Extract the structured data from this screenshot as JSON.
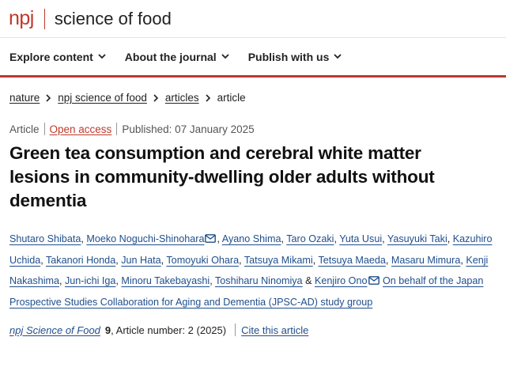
{
  "header": {
    "logo_npj": "npj",
    "logo_title": "science of food"
  },
  "nav": {
    "items": [
      {
        "label": "Explore content",
        "icon": "chevron-down-icon"
      },
      {
        "label": "About the journal",
        "icon": "chevron-down-icon"
      },
      {
        "label": "Publish with us",
        "icon": "chevron-down-icon"
      }
    ]
  },
  "breadcrumb": {
    "items": [
      "nature",
      "npj science of food",
      "articles"
    ],
    "current": "article"
  },
  "meta": {
    "type": "Article",
    "access": "Open access",
    "published": "Published: 07 January 2025"
  },
  "title": "Green tea consumption and cerebral white matter lesions in community-dwelling older adults without dementia",
  "authors": {
    "list": [
      "Shutaro Shibata",
      "Moeko Noguchi-Shinohara",
      "Ayano Shima",
      "Taro Ozaki",
      "Yuta Usui",
      "Yasuyuki Taki",
      "Kazuhiro Uchida",
      "Takanori Honda",
      "Jun Hata",
      "Tomoyuki Ohara",
      "Tatsuya Mikami",
      "Tetsuya Maeda",
      "Masaru Mimura",
      "Kenji Nakashima",
      "Jun-ichi Iga",
      "Minoru Takebayashi",
      "Toshiharu Ninomiya",
      "Kenjiro Ono"
    ],
    "ampersand": "&",
    "group": "On behalf of the Japan Prospective Studies Collaboration for Aging and Dementia (JPSC-AD) study group"
  },
  "citation": {
    "journal": "npj Science of Food",
    "volume": "9",
    "rest": ", Article number: 2 (2025)",
    "cite_label": "Cite this article"
  },
  "colors": {
    "brand_red": "#c0392b",
    "link_blue": "#1f4e8c"
  }
}
